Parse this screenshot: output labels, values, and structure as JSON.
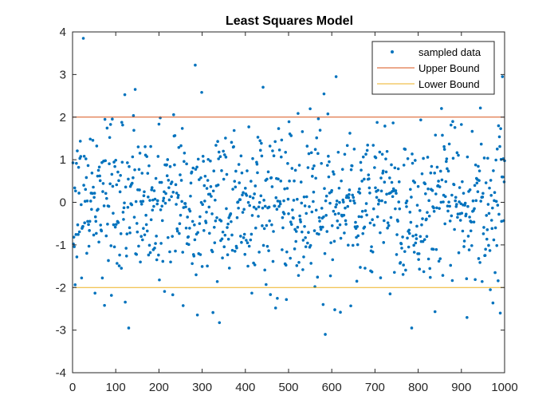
{
  "chart_data": {
    "type": "scatter",
    "title": "Least Squares Model",
    "xlabel": "",
    "ylabel": "",
    "xlim": [
      0,
      1000
    ],
    "ylim": [
      -4,
      4
    ],
    "xticks": [
      0,
      100,
      200,
      300,
      400,
      500,
      600,
      700,
      800,
      900,
      1000
    ],
    "yticks": [
      -4,
      -3,
      -2,
      -1,
      0,
      1,
      2,
      3,
      4
    ],
    "grid": false,
    "legend_position": "top-right",
    "series": [
      {
        "name": "sampled data",
        "kind": "points",
        "color": "#0072BD",
        "n": 1000,
        "x_range": [
          1,
          1000
        ],
        "distribution": "normal",
        "mean": 0,
        "std": 1
      },
      {
        "name": "Upper Bound",
        "kind": "line",
        "color": "#D95319",
        "x": [
          0,
          1000
        ],
        "y": [
          2,
          2
        ]
      },
      {
        "name": "Lower Bound",
        "kind": "line",
        "color": "#EDB120",
        "x": [
          0,
          1000
        ],
        "y": [
          -2,
          -2
        ]
      }
    ],
    "notable_points": [
      {
        "x": 25,
        "y": 3.85
      },
      {
        "x": 130,
        "y": -2.95
      },
      {
        "x": 145,
        "y": 2.65
      },
      {
        "x": 585,
        "y": -3.1
      },
      {
        "x": 610,
        "y": 2.95
      },
      {
        "x": 785,
        "y": -2.95
      },
      {
        "x": 995,
        "y": 2.95
      },
      {
        "x": 990,
        "y": -2.6
      }
    ]
  }
}
